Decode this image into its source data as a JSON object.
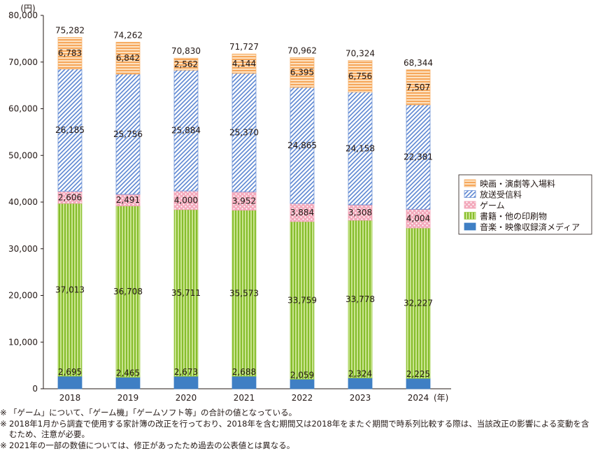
{
  "chart_data": {
    "type": "bar",
    "stacked": true,
    "y_unit": "(円)",
    "x_unit": "(年)",
    "categories": [
      "2018",
      "2019",
      "2020",
      "2021",
      "2022",
      "2023",
      "2024"
    ],
    "ylim": [
      0,
      80000
    ],
    "yticks": [
      0,
      10000,
      20000,
      30000,
      40000,
      50000,
      60000,
      70000,
      80000
    ],
    "ytick_labels": [
      "0",
      "10,000",
      "20,000",
      "30,000",
      "40,000",
      "50,000",
      "60,000",
      "70,000",
      "80,000"
    ],
    "grid": false,
    "legend_position": "right",
    "series": [
      {
        "name": "音楽・映像収録済メディア",
        "values": [
          2695,
          2465,
          2673,
          2688,
          2059,
          2324,
          2225
        ],
        "labels": [
          "2,695",
          "2,465",
          "2,673",
          "2,688",
          "2,059",
          "2,324",
          "2,225"
        ],
        "color": "#3f7fc4",
        "pattern": "solid"
      },
      {
        "name": "書籍・他の印刷物",
        "values": [
          37013,
          36708,
          35711,
          35573,
          33759,
          33778,
          32227
        ],
        "labels": [
          "37,013",
          "36,708",
          "35,711",
          "35,573",
          "33,759",
          "33,778",
          "32,227"
        ],
        "color": "#9ccc48",
        "pattern": "vertical-lines"
      },
      {
        "name": "ゲーム",
        "values": [
          2606,
          2491,
          4000,
          3952,
          3884,
          3308,
          4004
        ],
        "labels": [
          "2,606",
          "2,491",
          "4,000",
          "3,952",
          "3,884",
          "3,308",
          "4,004"
        ],
        "color": "#f2a0b4",
        "pattern": "dots"
      },
      {
        "name": "放送受信料",
        "values": [
          26185,
          25756,
          25884,
          25370,
          24865,
          24158,
          22381
        ],
        "labels": [
          "26,185",
          "25,756",
          "25,884",
          "25,370",
          "24,865",
          "24,158",
          "22,381"
        ],
        "color": "#6e93d6",
        "pattern": "diagonal-lines"
      },
      {
        "name": "映画・演劇等入場料",
        "values": [
          6783,
          6842,
          2562,
          4144,
          6395,
          6756,
          7507
        ],
        "labels": [
          "6,783",
          "6,842",
          "2,562",
          "4,144",
          "6,395",
          "6,756",
          "7,507"
        ],
        "color": "#f7b36e",
        "pattern": "horizontal-lines"
      }
    ],
    "totals": [
      75282,
      74262,
      70830,
      71727,
      70962,
      70324,
      68344
    ],
    "total_labels": [
      "75,282",
      "74,262",
      "70,830",
      "71,727",
      "70,962",
      "70,324",
      "68,344"
    ],
    "legend_order": [
      "映画・演劇等入場料",
      "放送受信料",
      "ゲーム",
      "書籍・他の印刷物",
      "音楽・映像収録済メディア"
    ]
  },
  "notes": [
    {
      "mark": "※",
      "text": "「ゲーム」について、「ゲーム機」「ゲームソフト等」の合計の値となっている。"
    },
    {
      "mark": "※",
      "text": "2018年1月から調査で使用する家計簿の改正を行っており、2018年を含む期間又は2018年をまたぐ期間で時系列比較する際は、当該改正の影響による変動を含むため、注意が必要。"
    },
    {
      "mark": "※",
      "text": "2021年の一部の数値については、修正があったため過去の公表値とは異なる。"
    }
  ]
}
